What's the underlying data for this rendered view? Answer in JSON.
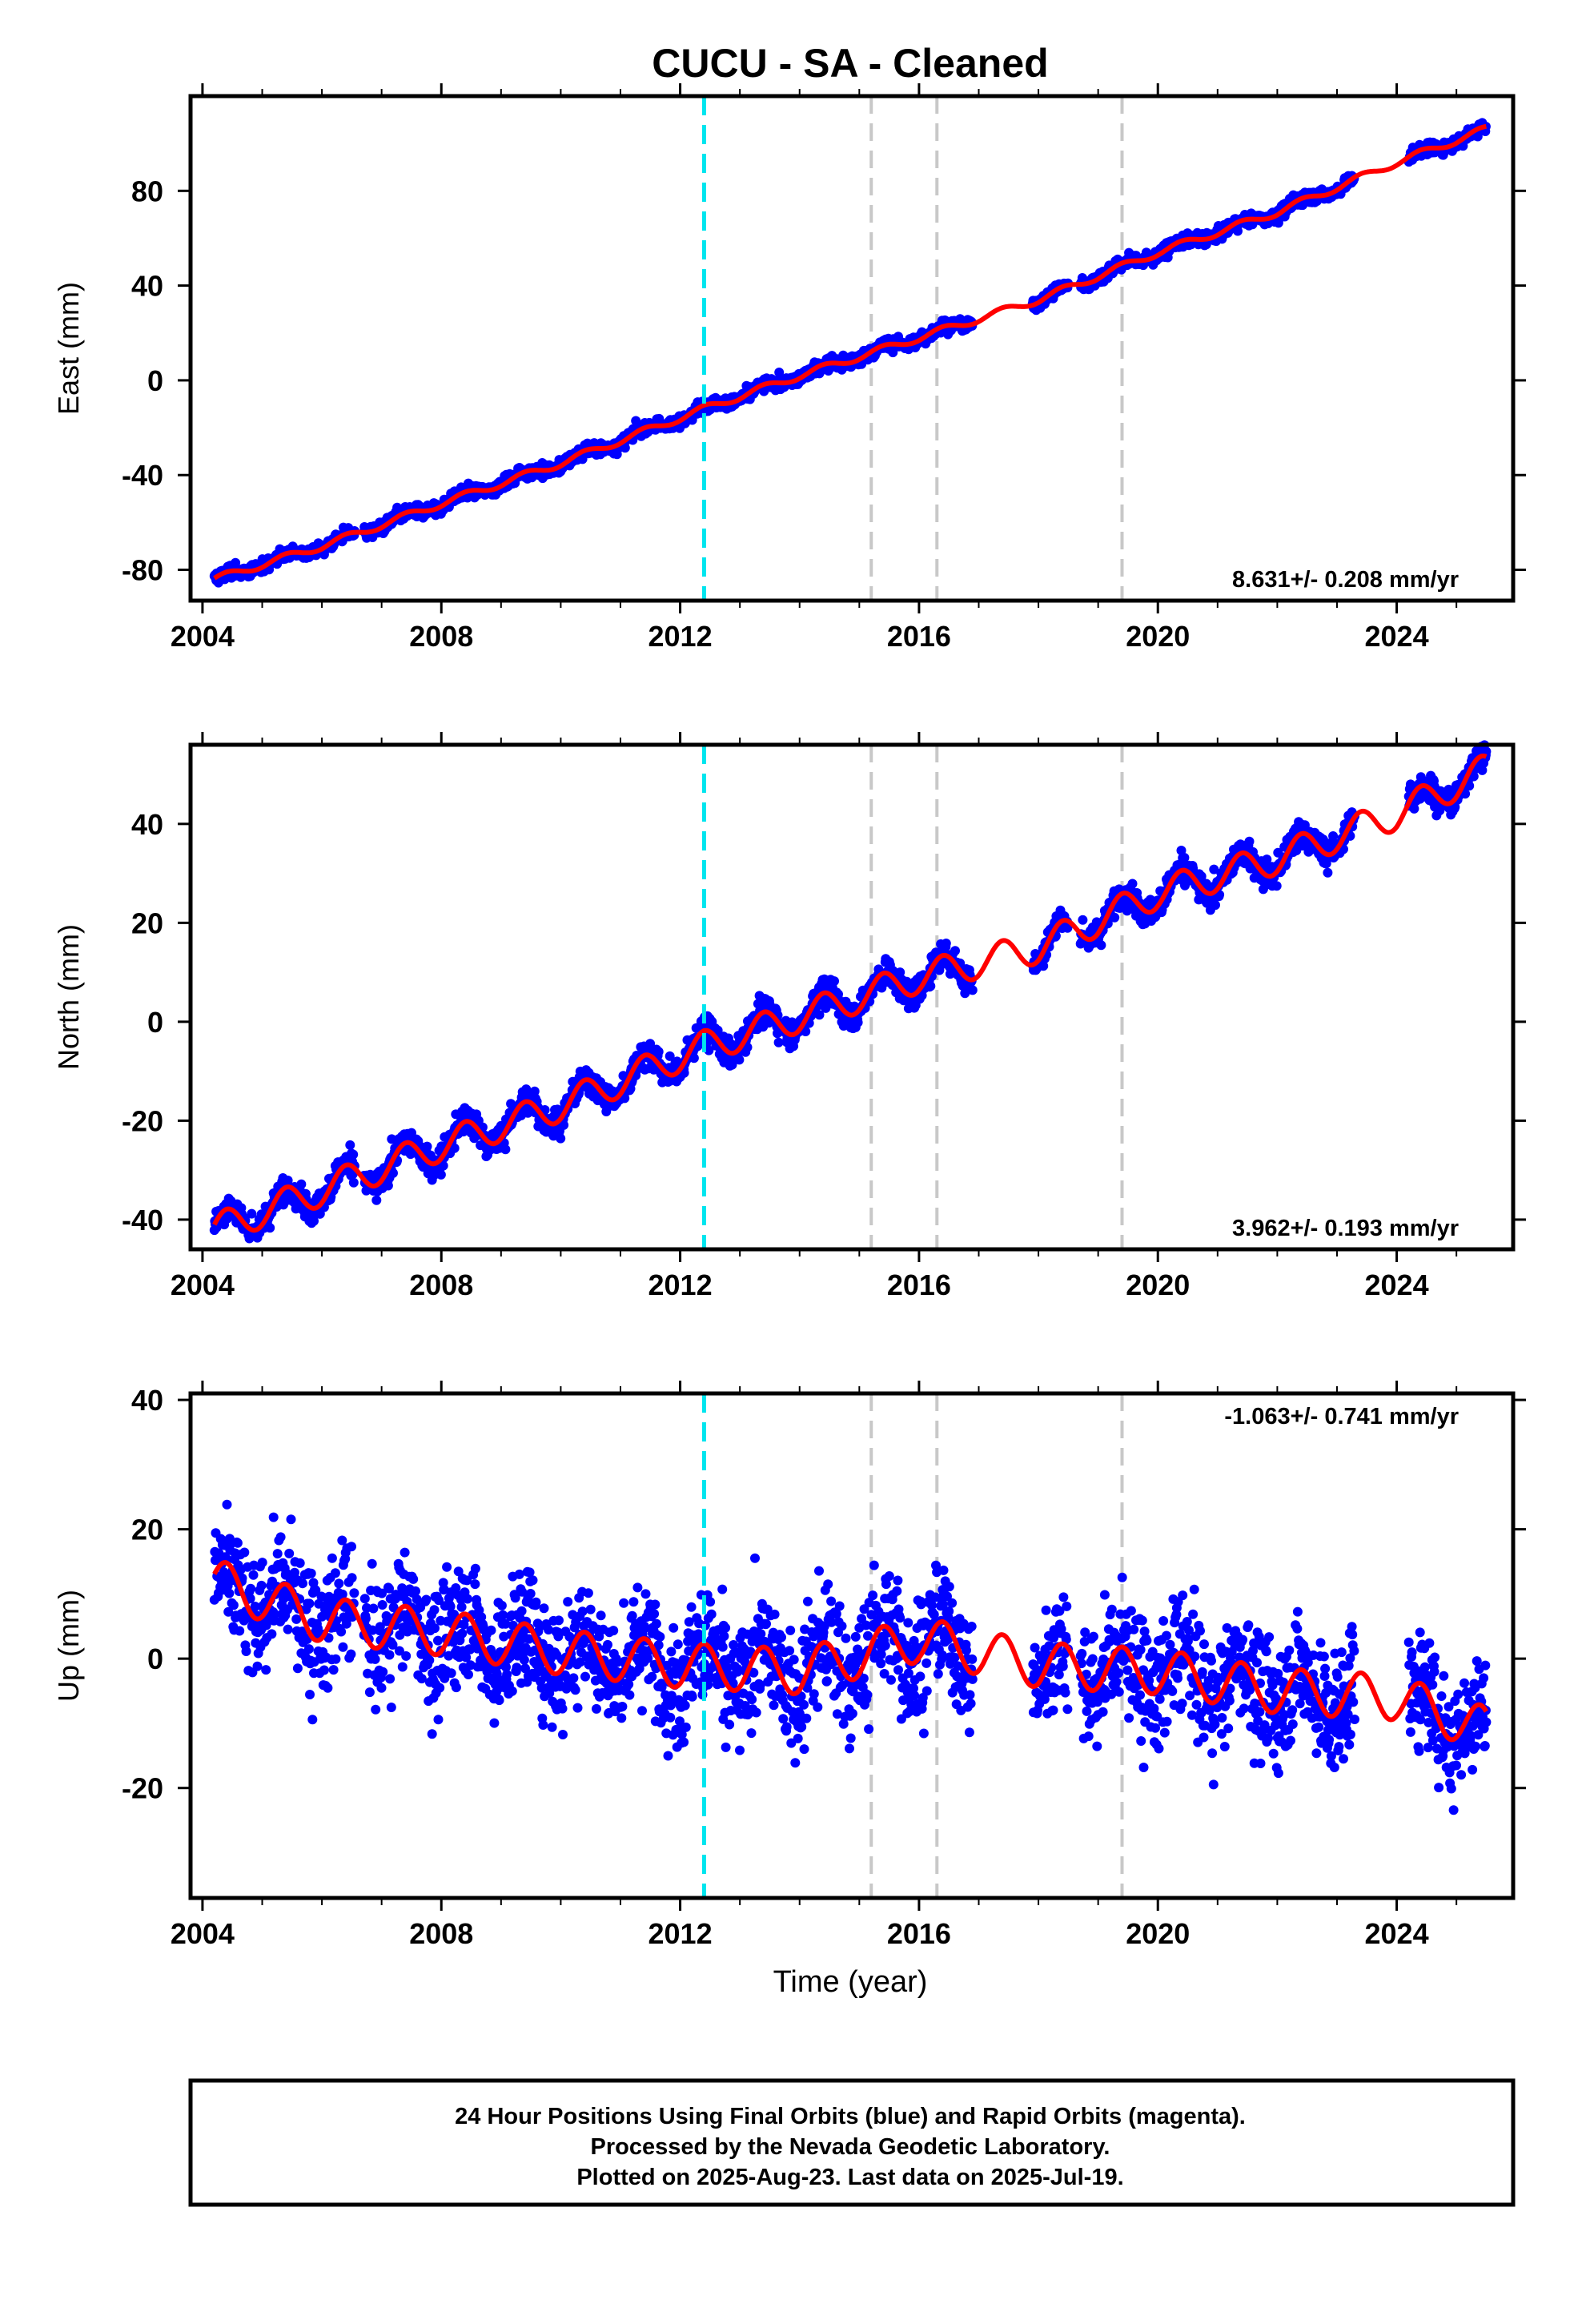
{
  "title": "CUCU  - SA - Cleaned",
  "xlabel": "Time (year)",
  "footer": {
    "line1": "24 Hour Positions Using Final Orbits (blue) and Rapid Orbits (magenta).",
    "line2": "Processed by the Nevada Geodetic Laboratory.",
    "line3": "Plotted on 2025-Aug-23. Last data on 2025-Jul-19."
  },
  "colors": {
    "data": "#0000ff",
    "model": "#ff0000",
    "antenna_change": "#00e5ee",
    "equipment_change": "#c8c8c8",
    "frame": "#000000"
  },
  "chart_data": [
    {
      "type": "scatter",
      "component": "east",
      "ylabel": "East (mm)",
      "rate_label": "8.631+/- 0.208 mm/yr",
      "xlim": [
        2003.8,
        2025.95
      ],
      "ylim": [
        -93,
        120
      ],
      "xticks": [
        "2004",
        "2008",
        "2012",
        "2016",
        "2020",
        "2024"
      ],
      "yticks": [
        "-80",
        "-40",
        "0",
        "40",
        "80"
      ],
      "cyan_lines": [
        2012.4
      ],
      "gray_lines": [
        2015.2,
        2016.3,
        2019.4
      ],
      "series": [
        {
          "name": "model",
          "points": [
            [
              2004.2,
              -84
            ],
            [
              2006.0,
              -70
            ],
            [
              2008.0,
              -52
            ],
            [
              2010.0,
              -35
            ],
            [
              2012.4,
              -12
            ],
            [
              2014.0,
              2
            ],
            [
              2016.0,
              18
            ],
            [
              2018.0,
              34
            ],
            [
              2020.0,
              54
            ],
            [
              2022.0,
              71
            ],
            [
              2024.0,
              92
            ],
            [
              2025.5,
              106
            ]
          ]
        }
      ]
    },
    {
      "type": "scatter",
      "component": "north",
      "ylabel": "North (mm)",
      "rate_label": "3.962+/- 0.193 mm/yr",
      "xlim": [
        2003.8,
        2025.95
      ],
      "ylim": [
        -46,
        56
      ],
      "xticks": [
        "2004",
        "2008",
        "2012",
        "2016",
        "2020",
        "2024"
      ],
      "yticks": [
        "-40",
        "-20",
        "0",
        "20",
        "40"
      ],
      "cyan_lines": [
        2012.4
      ],
      "gray_lines": [
        2015.2,
        2016.3,
        2019.4
      ],
      "series": [
        {
          "name": "model",
          "points": [
            [
              2004.2,
              -42
            ],
            [
              2006.0,
              -34
            ],
            [
              2008.0,
              -25
            ],
            [
              2010.0,
              -17
            ],
            [
              2012.4,
              -5
            ],
            [
              2014.0,
              1
            ],
            [
              2016.0,
              9
            ],
            [
              2018.0,
              15
            ],
            [
              2020.0,
              26
            ],
            [
              2022.0,
              33
            ],
            [
              2024.0,
              42
            ],
            [
              2025.5,
              51
            ]
          ]
        }
      ]
    },
    {
      "type": "scatter",
      "component": "up",
      "ylabel": "Up (mm)",
      "rate_label": "-1.063+/- 0.741 mm/yr",
      "xlim": [
        2003.8,
        2025.95
      ],
      "ylim": [
        -37,
        41
      ],
      "xticks": [
        "2004",
        "2008",
        "2012",
        "2016",
        "2020",
        "2024"
      ],
      "yticks": [
        "-20",
        "0",
        "20",
        "40"
      ],
      "cyan_lines": [
        2012.4
      ],
      "gray_lines": [
        2015.2,
        2016.3,
        2019.4
      ],
      "series": [
        {
          "name": "model",
          "points": [
            [
              2004.2,
              12
            ],
            [
              2006.0,
              6
            ],
            [
              2008.0,
              4
            ],
            [
              2010.0,
              1
            ],
            [
              2012.0,
              -1
            ],
            [
              2014.0,
              -2
            ],
            [
              2016.0,
              3
            ],
            [
              2018.0,
              -1
            ],
            [
              2020.0,
              -2
            ],
            [
              2022.0,
              -5
            ],
            [
              2024.0,
              -6
            ],
            [
              2025.5,
              -11
            ]
          ]
        }
      ]
    }
  ]
}
